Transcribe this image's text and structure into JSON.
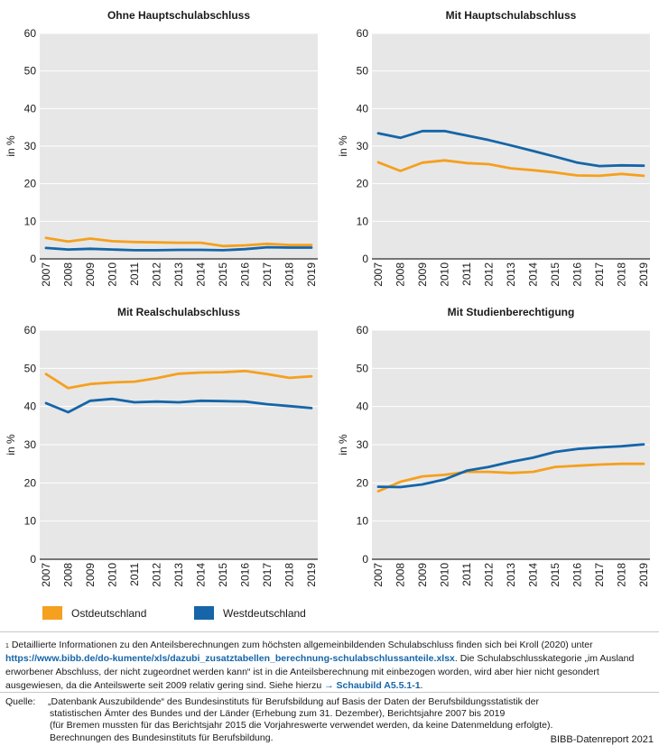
{
  "colors": {
    "ost": "#F5A01E",
    "west": "#1565A8",
    "link": "#1565A8"
  },
  "legend": {
    "ost": "Ostdeutschland",
    "west": "Westdeutschland"
  },
  "chart_data": [
    {
      "type": "line",
      "title": "Ohne Hauptschulabschluss",
      "ylabel": "in %",
      "xlabel": "",
      "ylim": [
        0,
        60
      ],
      "yticks": [
        "0",
        "10",
        "20",
        "30",
        "40",
        "50",
        "60"
      ],
      "categories": [
        "2007",
        "2008",
        "2009",
        "2010",
        "2011",
        "2012",
        "2013",
        "2014",
        "2015",
        "2016",
        "2017",
        "2018",
        "2019"
      ],
      "series": [
        {
          "name": "Ostdeutschland",
          "values": [
            5.6,
            4.6,
            5.4,
            4.7,
            4.5,
            4.4,
            4.3,
            4.3,
            3.4,
            3.6,
            4.0,
            3.7,
            3.7
          ]
        },
        {
          "name": "Westdeutschland",
          "values": [
            2.9,
            2.5,
            2.7,
            2.5,
            2.3,
            2.3,
            2.4,
            2.4,
            2.3,
            2.6,
            3.1,
            3.0,
            3.0
          ]
        }
      ]
    },
    {
      "type": "line",
      "title": "Mit Hauptschulabschluss",
      "ylabel": "in %",
      "xlabel": "",
      "ylim": [
        0,
        60
      ],
      "yticks": [
        "0",
        "10",
        "20",
        "30",
        "40",
        "50",
        "60"
      ],
      "categories": [
        "2007",
        "2008",
        "2009",
        "2010",
        "2011",
        "2012",
        "2013",
        "2014",
        "2015",
        "2016",
        "2017",
        "2018",
        "2019"
      ],
      "series": [
        {
          "name": "Ostdeutschland",
          "values": [
            25.7,
            23.4,
            25.6,
            26.2,
            25.5,
            25.2,
            24.1,
            23.6,
            23.0,
            22.2,
            22.1,
            22.6,
            22.1
          ]
        },
        {
          "name": "Westdeutschland",
          "values": [
            33.4,
            32.2,
            34.0,
            34.0,
            32.8,
            31.6,
            30.2,
            28.7,
            27.2,
            25.6,
            24.7,
            24.9,
            24.8
          ]
        }
      ]
    },
    {
      "type": "line",
      "title": "Mit Realschulabschluss",
      "ylabel": "in %",
      "xlabel": "",
      "ylim": [
        0,
        60
      ],
      "yticks": [
        "0",
        "10",
        "20",
        "30",
        "40",
        "50",
        "60"
      ],
      "categories": [
        "2007",
        "2008",
        "2009",
        "2010",
        "2011",
        "2012",
        "2013",
        "2014",
        "2015",
        "2016",
        "2017",
        "2018",
        "2019"
      ],
      "series": [
        {
          "name": "Ostdeutschland",
          "values": [
            48.5,
            44.8,
            45.9,
            46.3,
            46.5,
            47.4,
            48.6,
            48.9,
            49.0,
            49.3,
            48.5,
            47.5,
            47.9
          ]
        },
        {
          "name": "Westdeutschland",
          "values": [
            40.9,
            38.5,
            41.5,
            42.0,
            41.1,
            41.3,
            41.1,
            41.5,
            41.4,
            41.3,
            40.6,
            40.1,
            39.6
          ]
        }
      ]
    },
    {
      "type": "line",
      "title": "Mit Studienberechtigung",
      "ylabel": "in %",
      "xlabel": "",
      "ylim": [
        0,
        60
      ],
      "yticks": [
        "0",
        "10",
        "20",
        "30",
        "40",
        "50",
        "60"
      ],
      "categories": [
        "2007",
        "2008",
        "2009",
        "2010",
        "2011",
        "2012",
        "2013",
        "2014",
        "2015",
        "2016",
        "2017",
        "2018",
        "2019"
      ],
      "series": [
        {
          "name": "Ostdeutschland",
          "values": [
            17.8,
            20.3,
            21.7,
            22.1,
            22.9,
            22.9,
            22.6,
            22.9,
            24.2,
            24.5,
            24.8,
            25.0,
            25.0
          ]
        },
        {
          "name": "Westdeutschland",
          "values": [
            19.0,
            18.9,
            19.6,
            20.9,
            23.2,
            24.2,
            25.5,
            26.6,
            28.1,
            28.9,
            29.3,
            29.6,
            30.1
          ]
        }
      ]
    }
  ],
  "footnote": {
    "marker": "1",
    "part1": "Detaillierte Informationen zu den Anteilsberechnungen zum höchsten allgemeinbildenden Schulabschluss finden sich bei Kroll (2020) unter ",
    "link1": "https://www.bibb.de/do-kumente/xls/dazubi_zusatztabellen_berechnung-schulabschlussanteile.xlsx",
    "part2": ". Die Schulabschlusskategorie „im Ausland erworbener Abschluss, der nicht zugeordnet werden kann“ ist in die Anteilsberechnung mit einbezogen worden, wird aber hier nicht gesondert ausgewiesen, da die Anteilswerte seit 2009 relativ gering sind. Siehe hierzu ",
    "link2": "→ Schaubild A5.5.1-1",
    "part3": "."
  },
  "source": {
    "label": "Quelle:",
    "line1": "„Datenbank Auszubildende“ des Bundesinstituts für Berufsbildung auf Basis der Daten der Berufsbildungsstatistik der",
    "line2": "statistischen Ämter des Bundes und der Länder (Erhebung zum 31. Dezember), Berichtsjahre 2007 bis 2019",
    "line3": "(für Bremen mussten für das Berichtsjahr 2015 die Vorjahreswerte verwendet werden, da keine Datenmeldung erfolgte).",
    "line4": "Berechnungen des Bundesinstituts für Berufsbildung."
  },
  "brand": "BIBB-Datenreport 2021"
}
